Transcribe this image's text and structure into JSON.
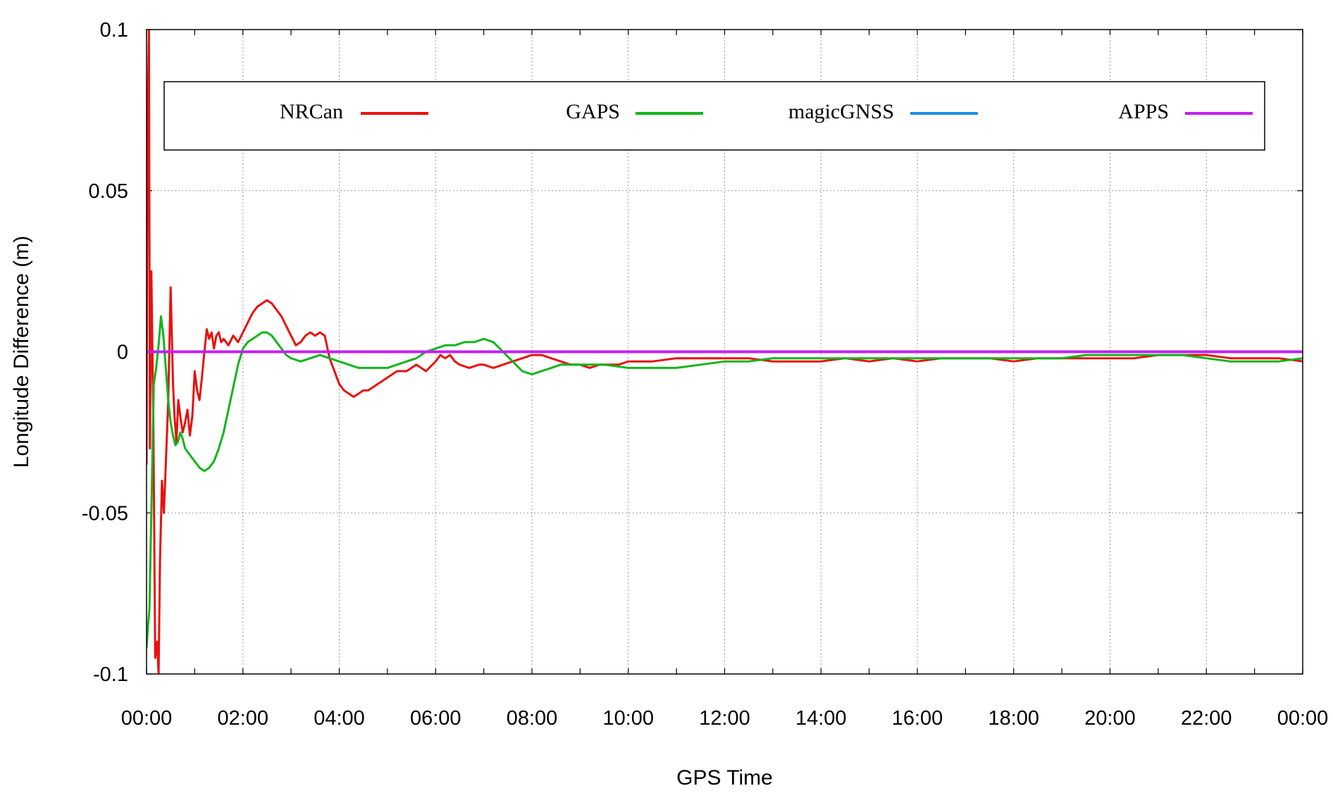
{
  "chart_data": {
    "type": "line",
    "title": "",
    "xlabel": "GPS Time",
    "ylabel": "Longitude Difference (m)",
    "xlim": [
      0,
      24
    ],
    "ylim": [
      -0.1,
      0.1
    ],
    "x_ticks": [
      "00:00",
      "02:00",
      "04:00",
      "06:00",
      "08:00",
      "10:00",
      "12:00",
      "14:00",
      "16:00",
      "18:00",
      "20:00",
      "22:00",
      "00:00"
    ],
    "y_ticks": [
      {
        "value": 0.1,
        "label": "0.1"
      },
      {
        "value": 0.05,
        "label": "0.05"
      },
      {
        "value": 0,
        "label": "0"
      },
      {
        "value": -0.05,
        "label": "-0.05"
      },
      {
        "value": -0.1,
        "label": "-0.1"
      }
    ],
    "grid": true,
    "legend_position": "top",
    "series": [
      {
        "name": "NRCan",
        "color": "#e8110f",
        "x": [
          0.0,
          0.02,
          0.05,
          0.07,
          0.1,
          0.14,
          0.18,
          0.22,
          0.25,
          0.28,
          0.32,
          0.36,
          0.4,
          0.45,
          0.5,
          0.55,
          0.58,
          0.62,
          0.66,
          0.7,
          0.75,
          0.8,
          0.85,
          0.9,
          0.95,
          1.0,
          1.05,
          1.1,
          1.15,
          1.2,
          1.25,
          1.3,
          1.35,
          1.4,
          1.45,
          1.5,
          1.55,
          1.6,
          1.7,
          1.8,
          1.9,
          2.0,
          2.1,
          2.2,
          2.3,
          2.4,
          2.5,
          2.6,
          2.7,
          2.8,
          2.9,
          3.0,
          3.1,
          3.2,
          3.3,
          3.4,
          3.5,
          3.6,
          3.7,
          3.8,
          3.9,
          4.0,
          4.1,
          4.2,
          4.3,
          4.4,
          4.5,
          4.6,
          4.7,
          4.8,
          4.9,
          5.0,
          5.2,
          5.4,
          5.6,
          5.8,
          6.0,
          6.1,
          6.2,
          6.3,
          6.4,
          6.5,
          6.7,
          6.9,
          7.0,
          7.2,
          7.4,
          7.6,
          7.8,
          8.0,
          8.2,
          8.4,
          8.6,
          8.8,
          9.0,
          9.2,
          9.4,
          9.6,
          9.8,
          10.0,
          10.2,
          10.5,
          11.0,
          11.5,
          12.0,
          12.5,
          13.0,
          13.5,
          14.0,
          14.5,
          15.0,
          15.5,
          16.0,
          16.5,
          17.0,
          17.5,
          18.0,
          18.5,
          19.0,
          19.5,
          20.0,
          20.5,
          21.0,
          21.5,
          22.0,
          22.5,
          23.0,
          23.5,
          24.0
        ],
        "y": [
          -0.035,
          0.07,
          0.1,
          -0.03,
          0.025,
          -0.02,
          -0.095,
          -0.09,
          -0.1,
          -0.065,
          -0.04,
          -0.05,
          -0.035,
          -0.015,
          0.02,
          -0.01,
          -0.02,
          -0.028,
          -0.015,
          -0.02,
          -0.025,
          -0.022,
          -0.018,
          -0.026,
          -0.02,
          -0.006,
          -0.012,
          -0.015,
          -0.008,
          0.0,
          0.007,
          0.004,
          0.006,
          0.001,
          0.005,
          0.006,
          0.003,
          0.004,
          0.002,
          0.005,
          0.003,
          0.006,
          0.009,
          0.012,
          0.014,
          0.015,
          0.016,
          0.015,
          0.013,
          0.011,
          0.008,
          0.005,
          0.002,
          0.003,
          0.005,
          0.006,
          0.005,
          0.006,
          0.005,
          -0.002,
          -0.006,
          -0.01,
          -0.012,
          -0.013,
          -0.014,
          -0.013,
          -0.012,
          -0.012,
          -0.011,
          -0.01,
          -0.009,
          -0.008,
          -0.006,
          -0.006,
          -0.004,
          -0.006,
          -0.003,
          -0.001,
          -0.002,
          -0.001,
          -0.003,
          -0.004,
          -0.005,
          -0.004,
          -0.004,
          -0.005,
          -0.004,
          -0.003,
          -0.002,
          -0.001,
          -0.001,
          -0.002,
          -0.003,
          -0.004,
          -0.004,
          -0.005,
          -0.004,
          -0.004,
          -0.004,
          -0.003,
          -0.003,
          -0.003,
          -0.002,
          -0.002,
          -0.002,
          -0.002,
          -0.003,
          -0.003,
          -0.003,
          -0.002,
          -0.003,
          -0.002,
          -0.003,
          -0.002,
          -0.002,
          -0.002,
          -0.003,
          -0.002,
          -0.002,
          -0.002,
          -0.002,
          -0.002,
          -0.001,
          -0.001,
          -0.001,
          -0.002,
          -0.002,
          -0.002,
          -0.003
        ]
      },
      {
        "name": "GAPS",
        "color": "#11b51b",
        "x": [
          0.0,
          0.03,
          0.06,
          0.1,
          0.15,
          0.2,
          0.25,
          0.3,
          0.35,
          0.4,
          0.45,
          0.5,
          0.55,
          0.6,
          0.65,
          0.7,
          0.75,
          0.8,
          0.9,
          1.0,
          1.1,
          1.2,
          1.3,
          1.4,
          1.5,
          1.6,
          1.7,
          1.8,
          1.9,
          2.0,
          2.1,
          2.2,
          2.3,
          2.4,
          2.5,
          2.6,
          2.7,
          2.8,
          2.9,
          3.0,
          3.2,
          3.4,
          3.6,
          3.8,
          4.0,
          4.2,
          4.4,
          4.6,
          4.8,
          5.0,
          5.2,
          5.4,
          5.6,
          5.8,
          6.0,
          6.2,
          6.4,
          6.6,
          6.8,
          7.0,
          7.2,
          7.4,
          7.6,
          7.8,
          8.0,
          8.2,
          8.4,
          8.6,
          8.8,
          9.0,
          9.5,
          10.0,
          10.5,
          11.0,
          11.5,
          12.0,
          12.5,
          13.0,
          13.5,
          14.0,
          14.5,
          15.0,
          15.5,
          16.0,
          16.5,
          17.0,
          17.5,
          18.0,
          18.5,
          19.0,
          19.5,
          20.0,
          20.5,
          21.0,
          21.5,
          22.0,
          22.5,
          23.0,
          23.5,
          24.0
        ],
        "y": [
          -0.092,
          -0.085,
          -0.08,
          -0.05,
          -0.01,
          -0.005,
          0.002,
          0.011,
          0.005,
          -0.005,
          -0.015,
          -0.022,
          -0.026,
          -0.029,
          -0.028,
          -0.025,
          -0.027,
          -0.03,
          -0.032,
          -0.034,
          -0.036,
          -0.037,
          -0.036,
          -0.034,
          -0.03,
          -0.025,
          -0.018,
          -0.011,
          -0.004,
          0.001,
          0.003,
          0.004,
          0.005,
          0.006,
          0.006,
          0.005,
          0.003,
          0.001,
          -0.001,
          -0.002,
          -0.003,
          -0.002,
          -0.001,
          -0.002,
          -0.003,
          -0.004,
          -0.005,
          -0.005,
          -0.005,
          -0.005,
          -0.004,
          -0.003,
          -0.002,
          0.0,
          0.001,
          0.002,
          0.002,
          0.003,
          0.003,
          0.004,
          0.003,
          0.0,
          -0.003,
          -0.006,
          -0.007,
          -0.006,
          -0.005,
          -0.004,
          -0.004,
          -0.004,
          -0.004,
          -0.005,
          -0.005,
          -0.005,
          -0.004,
          -0.003,
          -0.003,
          -0.002,
          -0.002,
          -0.002,
          -0.002,
          -0.002,
          -0.002,
          -0.002,
          -0.002,
          -0.002,
          -0.002,
          -0.002,
          -0.002,
          -0.002,
          -0.001,
          -0.001,
          -0.001,
          -0.001,
          -0.001,
          -0.002,
          -0.003,
          -0.003,
          -0.003,
          -0.002
        ]
      },
      {
        "name": "magicGNSS",
        "color": "#1d8fe8",
        "x": [
          0,
          24
        ],
        "y": [
          0,
          0
        ]
      },
      {
        "name": "APPS",
        "color": "#c21ff0",
        "x": [
          0,
          24
        ],
        "y": [
          0,
          0
        ]
      }
    ]
  }
}
